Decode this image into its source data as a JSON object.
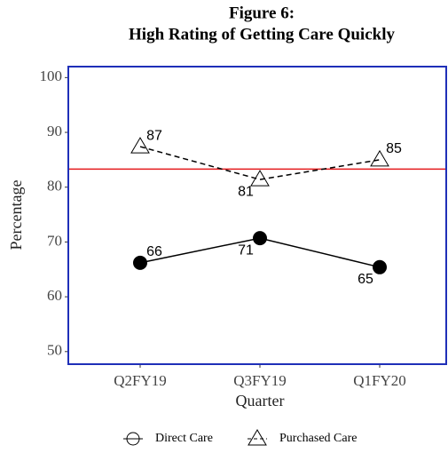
{
  "chart_data": {
    "type": "line",
    "title": "Figure 6:",
    "subtitle": "High Rating of Getting Care Quickly",
    "xlabel": "Quarter",
    "ylabel": "Percentage",
    "categories": [
      "Q2FY19",
      "Q3FY19",
      "Q1FY20"
    ],
    "series": [
      {
        "name": "Direct Care",
        "color": "#000000",
        "marker": "circle",
        "dash": "solid",
        "values": [
          66.2,
          70.7,
          65.4
        ],
        "value_labels": [
          "66",
          "71",
          "65"
        ]
      },
      {
        "name": "Purchased Care",
        "color": "#000000",
        "marker": "triangle",
        "dash": "dashed",
        "values": [
          87.4,
          81.4,
          85.0
        ],
        "value_labels": [
          "87",
          "81",
          "85"
        ]
      }
    ],
    "reference_line": {
      "value": 83.3,
      "color": "#e41a1c"
    },
    "ylim": [
      47.7,
      102
    ],
    "yticks": [
      50,
      60,
      70,
      80,
      90,
      100
    ],
    "panel_border_color": "#1f2fb8",
    "legend": "bottom"
  }
}
